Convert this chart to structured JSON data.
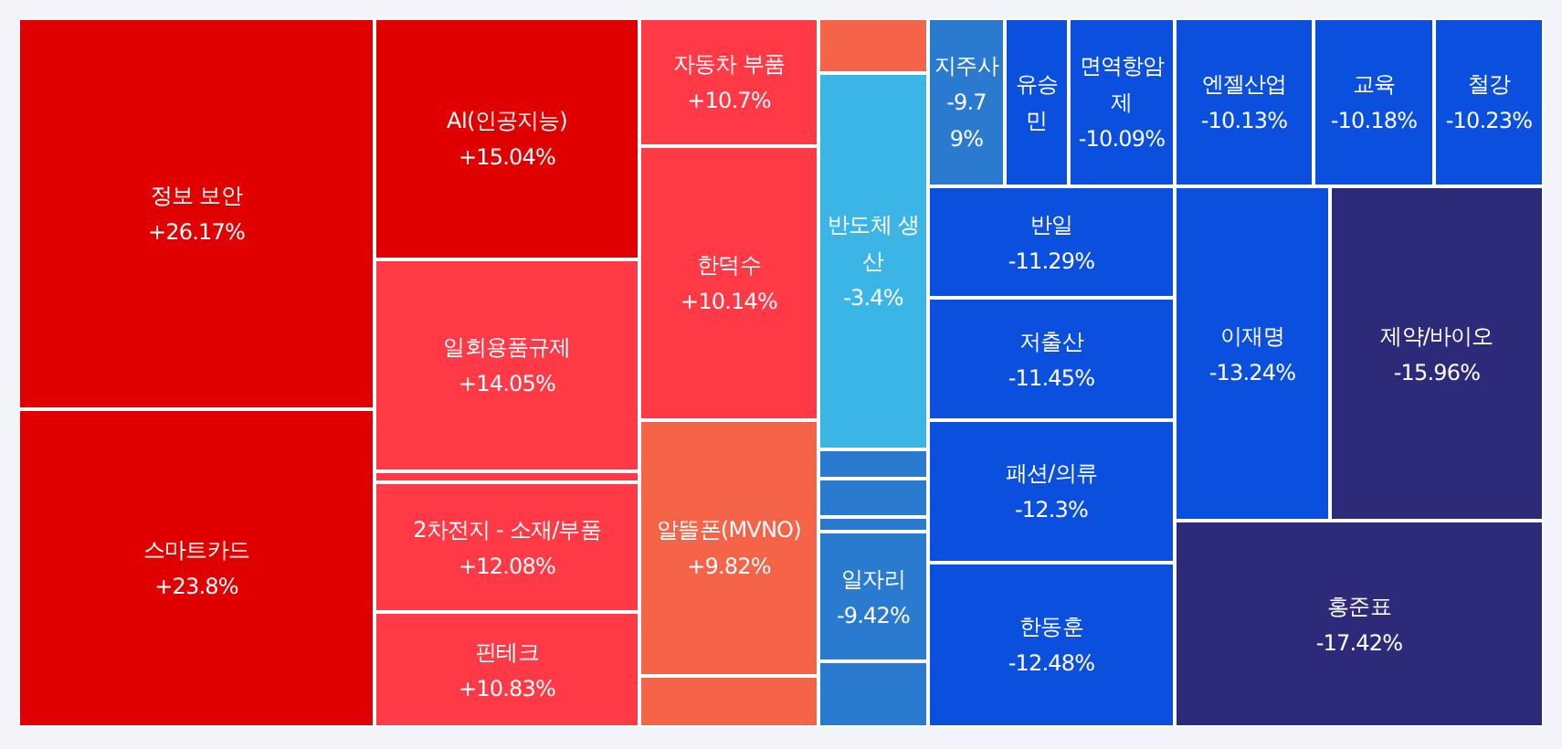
{
  "chart_data": {
    "type": "other",
    "categories": [
      "정보 보안",
      "스마트카드",
      "AI(인공지능)",
      "일회용품규제",
      null,
      "2차전지 - 소재/부품",
      "핀테크",
      "자동차 부품",
      "한덕수",
      "알뜰폰(MVNO)",
      null,
      "반도체 생산",
      null,
      null,
      null,
      "일자리",
      null,
      "지주사",
      "유승민",
      "면역항암제",
      "엔젤산업",
      "교육",
      "철강",
      "반일",
      "저출산",
      "패션/의류",
      "한동훈",
      "이재명",
      "제약/바이오",
      "홍준표"
    ],
    "values": [
      26.17,
      23.8,
      15.04,
      14.05,
      null,
      12.08,
      10.83,
      10.7,
      10.14,
      9.82,
      null,
      -3.4,
      null,
      null,
      null,
      -9.42,
      null,
      -9.79,
      null,
      -10.09,
      -10.13,
      -10.18,
      -10.23,
      -11.29,
      -11.45,
      -12.3,
      -12.48,
      -13.24,
      -15.96,
      -17.42
    ],
    "value_labels": [
      "+26.17%",
      "+23.8%",
      "+15.04%",
      "+14.05%",
      null,
      "+12.08%",
      "+10.83%",
      "+10.7%",
      "+10.14%",
      "+9.82%",
      null,
      "-3.4%",
      null,
      null,
      null,
      "-9.42%",
      null,
      "-9.79%",
      null,
      "-10.09%",
      "-10.13%",
      "-10.18%",
      "-10.23%",
      "-11.29%",
      "-11.45%",
      "-12.3%",
      "-12.48%",
      "-13.24%",
      "-15.96%",
      "-17.42%"
    ],
    "colors": [
      "#e00000",
      "#e00000",
      "#e00000",
      "#ff3a46",
      "#ff3a46",
      "#ff3a46",
      "#ff3a46",
      "#ff3a46",
      "#ff3a46",
      "#f56449",
      "#f56449",
      "#3bb5e6",
      "#2a7bd0",
      "#2a7bd0",
      "#2a7bd0",
      "#2a7bd0",
      "#2a7bd0",
      "#2a7bd0",
      "#0b4fdf",
      "#0b4fdf",
      "#0b4fdf",
      "#0b4fdf",
      "#0b4fdf",
      "#0b4fdf",
      "#0b4fdf",
      "#0b4fdf",
      "#0b4fdf",
      "#0b4fdf",
      "#2e2a7a",
      "#2e2a7a"
    ]
  }
}
